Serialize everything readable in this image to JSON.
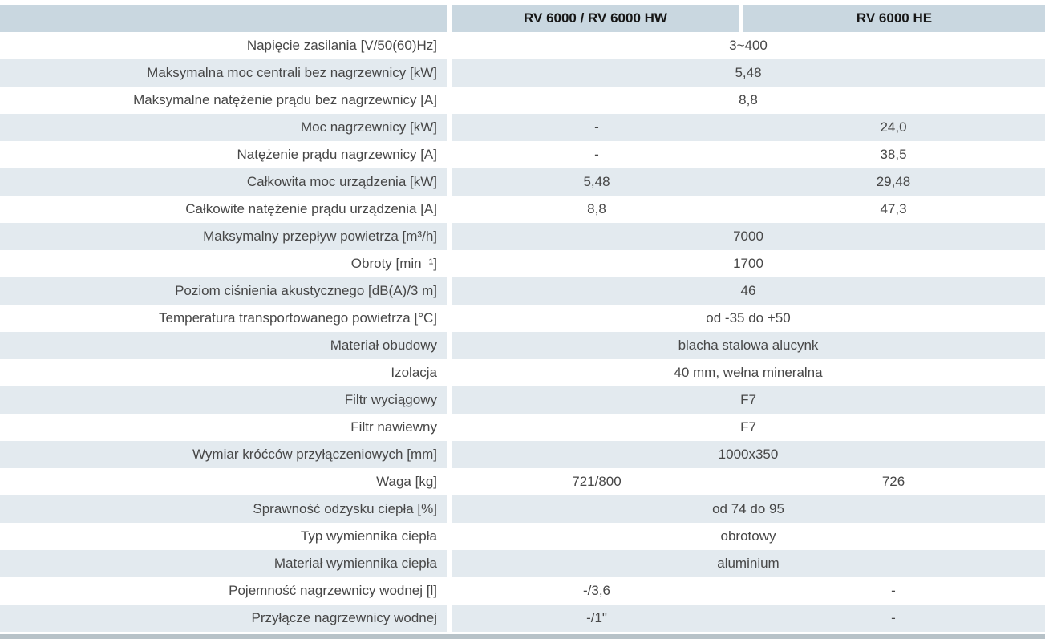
{
  "table": {
    "colors": {
      "header_bg": "#c9d7e0",
      "alt_row_bg": "#e3eaef",
      "row_bg": "#ffffff",
      "text": "#474747",
      "header_text": "#161616",
      "bottom_bar": "#b7c2c8"
    },
    "columns": [
      "RV 6000 / RV 6000 HW",
      "RV 6000 HE"
    ],
    "rows": [
      {
        "label": "Napięcie zasilania [V/50(60)Hz]",
        "span": "3~400"
      },
      {
        "label": "Maksymalna moc centrali bez nagrzewnicy [kW]",
        "span": "5,48"
      },
      {
        "label": "Maksymalne natężenie prądu bez nagrzewnicy [A]",
        "span": "8,8"
      },
      {
        "label": "Moc nagrzewnicy [kW]",
        "col1": "-",
        "col2": "24,0"
      },
      {
        "label": "Natężenie prądu nagrzewnicy [A]",
        "col1": "-",
        "col2": "38,5"
      },
      {
        "label": "Całkowita moc urządzenia [kW]",
        "col1": "5,48",
        "col2": "29,48"
      },
      {
        "label": "Całkowite natężenie prądu urządzenia [A]",
        "col1": "8,8",
        "col2": "47,3"
      },
      {
        "label": "Maksymalny przepływ powietrza [m³/h]",
        "span": "7000"
      },
      {
        "label": "Obroty [min⁻¹]",
        "span": "1700"
      },
      {
        "label": "Poziom ciśnienia akustycznego  [dB(A)/3 m]",
        "span": "46"
      },
      {
        "label": "Temperatura transportowanego powietrza [°C]",
        "span": "od -35 do +50"
      },
      {
        "label": "Materiał obudowy",
        "span": "blacha stalowa alucynk"
      },
      {
        "label": "Izolacja",
        "span": "40 mm, wełna mineralna"
      },
      {
        "label": "Filtr wyciągowy",
        "span": "F7"
      },
      {
        "label": "Filtr nawiewny",
        "span": "F7"
      },
      {
        "label": "Wymiar króćców przyłączeniowych [mm]",
        "span": "1000x350"
      },
      {
        "label": "Waga [kg]",
        "col1": "721/800",
        "col2": "726"
      },
      {
        "label": "Sprawność odzysku ciepła [%]",
        "span": "od 74 do 95"
      },
      {
        "label": "Typ wymiennika ciepła",
        "span": "obrotowy"
      },
      {
        "label": "Materiał wymiennika ciepła",
        "span": "aluminium"
      },
      {
        "label": "Pojemność nagrzewnicy wodnej [l]",
        "col1": "-/3,6",
        "col2": "-"
      },
      {
        "label": "Przyłącze nagrzewnicy wodnej",
        "col1": "-/1\"",
        "col2": "-"
      }
    ]
  }
}
